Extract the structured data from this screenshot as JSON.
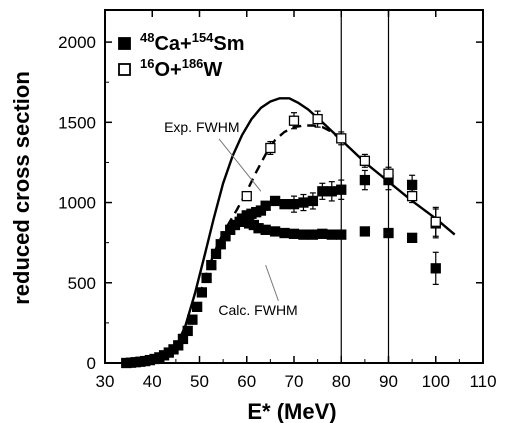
{
  "chart_data": {
    "type": "scatter",
    "xlabel": "E* (MeV)",
    "ylabel": "reduced cross section",
    "xlim": [
      30,
      110
    ],
    "ylim": [
      0,
      2200
    ],
    "xticks": [
      30,
      40,
      50,
      60,
      70,
      80,
      90,
      100,
      110
    ],
    "yticks": [
      0,
      500,
      1000,
      1500,
      2000
    ],
    "vlines": [
      80,
      90
    ],
    "legend_position": "top-left",
    "legend": [
      {
        "marker": "filled-square",
        "parts": [
          {
            "sup": "48"
          },
          {
            "t": "Ca+"
          },
          {
            "sup": "154"
          },
          {
            "t": "Sm"
          }
        ]
      },
      {
        "marker": "open-square",
        "parts": [
          {
            "sup": "16"
          },
          {
            "t": "O+"
          },
          {
            "sup": "186"
          },
          {
            "t": "W"
          }
        ]
      }
    ],
    "annotations": [
      {
        "text": "Exp. FWHM",
        "x": 42.5,
        "y": 1440,
        "pointer_to": {
          "x": 63,
          "y": 1070
        }
      },
      {
        "text": "Calc. FWHM",
        "x": 54,
        "y": 300,
        "pointer_to": {
          "x": 64,
          "y": 610
        }
      }
    ],
    "series": [
      {
        "name": "48Ca+154Sm",
        "marker": "filled-square",
        "points": [
          {
            "x": 34.5,
            "y": 0
          },
          {
            "x": 35.5,
            "y": 2
          },
          {
            "x": 36.5,
            "y": 5
          },
          {
            "x": 37.5,
            "y": 8
          },
          {
            "x": 38.5,
            "y": 12
          },
          {
            "x": 39.5,
            "y": 18
          },
          {
            "x": 40.5,
            "y": 25
          },
          {
            "x": 41.5,
            "y": 35
          },
          {
            "x": 42.5,
            "y": 48
          },
          {
            "x": 43.5,
            "y": 65
          },
          {
            "x": 44.5,
            "y": 85
          },
          {
            "x": 45.5,
            "y": 110
          },
          {
            "x": 46.5,
            "y": 150
          },
          {
            "x": 47.5,
            "y": 200
          },
          {
            "x": 48.5,
            "y": 270
          },
          {
            "x": 49.5,
            "y": 350
          },
          {
            "x": 50.5,
            "y": 440
          },
          {
            "x": 51.5,
            "y": 530
          },
          {
            "x": 52.5,
            "y": 610
          },
          {
            "x": 53.5,
            "y": 680
          },
          {
            "x": 54.5,
            "y": 740
          },
          {
            "x": 55.5,
            "y": 790
          },
          {
            "x": 56.5,
            "y": 830
          },
          {
            "x": 57.5,
            "y": 860
          },
          {
            "x": 58.5,
            "y": 880
          },
          {
            "x": 59.5,
            "y": 880
          },
          {
            "x": 60.5,
            "y": 870
          },
          {
            "x": 61.5,
            "y": 860
          },
          {
            "x": 62.5,
            "y": 840
          },
          {
            "x": 64,
            "y": 830
          },
          {
            "x": 66,
            "y": 820
          },
          {
            "x": 68,
            "y": 810
          },
          {
            "x": 70,
            "y": 805
          },
          {
            "x": 72,
            "y": 800
          },
          {
            "x": 74,
            "y": 800
          },
          {
            "x": 76,
            "y": 805
          },
          {
            "x": 78,
            "y": 800
          },
          {
            "x": 80,
            "y": 800
          },
          {
            "x": 85,
            "y": 820
          },
          {
            "x": 90,
            "y": 810
          },
          {
            "x": 95,
            "y": 780
          },
          {
            "x": 100,
            "y": 590,
            "err": 100
          },
          {
            "x": 59,
            "y": 900
          },
          {
            "x": 60,
            "y": 920
          },
          {
            "x": 61,
            "y": 930
          },
          {
            "x": 62,
            "y": 940
          },
          {
            "x": 63,
            "y": 950
          },
          {
            "x": 64,
            "y": 980
          },
          {
            "x": 66,
            "y": 1010
          },
          {
            "x": 68,
            "y": 990
          },
          {
            "x": 70,
            "y": 990,
            "err": 50
          },
          {
            "x": 72,
            "y": 1000,
            "err": 50
          },
          {
            "x": 74,
            "y": 1010,
            "err": 50
          },
          {
            "x": 76,
            "y": 1070,
            "err": 50
          },
          {
            "x": 78,
            "y": 1070,
            "err": 60
          },
          {
            "x": 80,
            "y": 1080,
            "err": 60
          },
          {
            "x": 85,
            "y": 1140,
            "err": 60
          },
          {
            "x": 90,
            "y": 1140,
            "err": 60
          },
          {
            "x": 95,
            "y": 1110,
            "err": 60
          },
          {
            "x": 100,
            "y": 870,
            "err": 90
          }
        ]
      },
      {
        "name": "16O+186W",
        "marker": "open-square",
        "points": [
          {
            "x": 60,
            "y": 1040
          },
          {
            "x": 65,
            "y": 1340,
            "err": 40
          },
          {
            "x": 70,
            "y": 1510,
            "err": 50
          },
          {
            "x": 75,
            "y": 1520,
            "err": 50
          },
          {
            "x": 80,
            "y": 1400,
            "err": 40
          },
          {
            "x": 85,
            "y": 1260,
            "err": 40
          },
          {
            "x": 90,
            "y": 1180,
            "err": 40
          },
          {
            "x": 95,
            "y": 1040,
            "err": 40
          },
          {
            "x": 100,
            "y": 880,
            "err": 90
          }
        ]
      }
    ],
    "curves": [
      {
        "style": "solid",
        "points": [
          {
            "x": 43,
            "y": 20
          },
          {
            "x": 45,
            "y": 100
          },
          {
            "x": 47,
            "y": 230
          },
          {
            "x": 49,
            "y": 430
          },
          {
            "x": 51,
            "y": 660
          },
          {
            "x": 53,
            "y": 900
          },
          {
            "x": 55,
            "y": 1120
          },
          {
            "x": 57,
            "y": 1290
          },
          {
            "x": 59,
            "y": 1420
          },
          {
            "x": 61,
            "y": 1520
          },
          {
            "x": 63,
            "y": 1590
          },
          {
            "x": 65,
            "y": 1630
          },
          {
            "x": 67,
            "y": 1650
          },
          {
            "x": 69,
            "y": 1650
          },
          {
            "x": 71,
            "y": 1620
          },
          {
            "x": 73,
            "y": 1580
          },
          {
            "x": 76,
            "y": 1500
          },
          {
            "x": 80,
            "y": 1390
          },
          {
            "x": 85,
            "y": 1250
          },
          {
            "x": 90,
            "y": 1130
          },
          {
            "x": 95,
            "y": 1010
          },
          {
            "x": 100,
            "y": 900
          },
          {
            "x": 104,
            "y": 800
          }
        ]
      },
      {
        "style": "dashed",
        "points": [
          {
            "x": 50,
            "y": 420
          },
          {
            "x": 52,
            "y": 600
          },
          {
            "x": 54,
            "y": 750
          },
          {
            "x": 56,
            "y": 860
          },
          {
            "x": 58,
            "y": 960
          },
          {
            "x": 60,
            "y": 1070
          },
          {
            "x": 62,
            "y": 1190
          },
          {
            "x": 64,
            "y": 1300
          },
          {
            "x": 66,
            "y": 1390
          },
          {
            "x": 68,
            "y": 1440
          },
          {
            "x": 70,
            "y": 1470
          },
          {
            "x": 72,
            "y": 1480
          },
          {
            "x": 74,
            "y": 1480
          },
          {
            "x": 76,
            "y": 1470
          },
          {
            "x": 78,
            "y": 1440
          },
          {
            "x": 80,
            "y": 1390
          }
        ]
      }
    ]
  }
}
